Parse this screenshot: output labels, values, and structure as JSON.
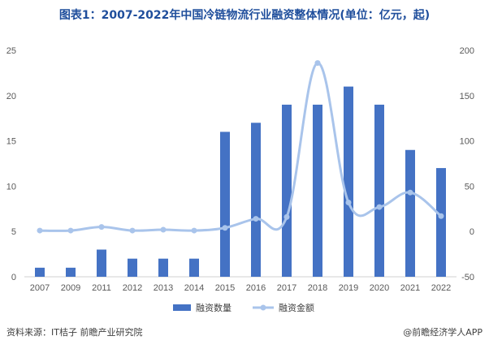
{
  "chart_data": {
    "type": "bar",
    "title": "图表1：2007-2022年中国冷链物流行业融资整体情况(单位：亿元，起)",
    "categories": [
      "2007",
      "2009",
      "2011",
      "2012",
      "2013",
      "2014",
      "2015",
      "2016",
      "2017",
      "2018",
      "2019",
      "2020",
      "2021",
      "2022"
    ],
    "series": [
      {
        "name": "融资数量",
        "type": "bar",
        "axis": "left",
        "color": "#4472c4",
        "values": [
          1,
          1,
          3,
          2,
          2,
          2,
          16,
          17,
          19,
          19,
          21,
          19,
          14,
          12
        ]
      },
      {
        "name": "融资金额",
        "type": "line",
        "axis": "right",
        "color": "#a9c4eb",
        "values": [
          1,
          1,
          5,
          1,
          2,
          1,
          4,
          14,
          16,
          186,
          32,
          27,
          43,
          17
        ]
      }
    ],
    "y_left": {
      "min": 0,
      "max": 25,
      "ticks": [
        0,
        5,
        10,
        15,
        20,
        25
      ]
    },
    "y_right": {
      "min": -50,
      "max": 200,
      "ticks": [
        -50,
        0,
        50,
        100,
        150,
        200
      ]
    },
    "legend_position": "bottom",
    "grid": false
  },
  "footer": {
    "source": "资料来源：IT桔子 前瞻产业研究院",
    "brand": "@前瞻经济学人APP"
  }
}
